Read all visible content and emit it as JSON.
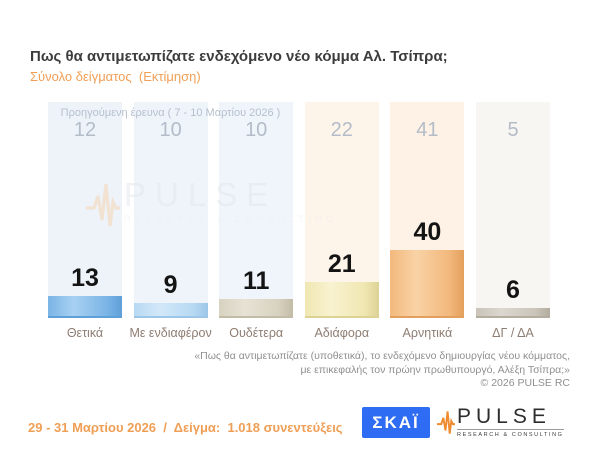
{
  "title": "Πως θα αντιμετωπίζατε ενδεχόμενο νέο κόμμα Αλ. Τσίπρα;",
  "subtitle": "Σύνολο δείγματος  (Εκτίμηση)",
  "previous_survey": {
    "label": "Προηγούμενη έρευνα ( 7 - 10 Μαρτίου 2026 )",
    "values": [
      12,
      10,
      10,
      22,
      41,
      5
    ]
  },
  "chart_data": {
    "type": "bar",
    "title": "Πως θα αντιμετωπίζατε ενδεχόμενο νέο κόμμα Αλ. Τσίπρα;",
    "subtitle": "Σύνολο δείγματος (Εκτίμηση)",
    "categories": [
      "Θετικά",
      "Με ενδιαφέρον",
      "Ουδέτερα",
      "Αδιάφορα",
      "Αρνητικά",
      "ΔΓ / ΔΑ"
    ],
    "series": [
      {
        "name": "Σύνολο δείγματος (Εκτίμηση) 29 - 31 Μαρτίου 2026",
        "values": [
          13,
          9,
          11,
          21,
          40,
          6
        ]
      },
      {
        "name": "Προηγούμενη έρευνα ( 7 - 10 Μαρτίου 2026 )",
        "values": [
          12,
          10,
          10,
          22,
          41,
          5
        ]
      }
    ],
    "ylim": [
      0,
      45
    ],
    "grid": false,
    "legend_position": "none",
    "bar_colors": [
      {
        "main": "#7ab4e6",
        "light": "#a8d1f2",
        "dark": "#5f9fd8"
      },
      {
        "main": "#b7d9f3",
        "light": "#d3e8f9",
        "dark": "#9cc6e8"
      },
      {
        "main": "#d8d2c0",
        "light": "#e7e2d4",
        "dark": "#c2bba6"
      },
      {
        "main": "#f0e7b2",
        "light": "#f8f2d0",
        "dark": "#ddd295"
      },
      {
        "main": "#f2b87c",
        "light": "#f9d3a6",
        "dark": "#e39f5d"
      },
      {
        "main": "#cac4b9",
        "light": "#dcd7cf",
        "dark": "#b3ada0"
      }
    ],
    "column_backgrounds": [
      "#edf3f9",
      "#eef4fa",
      "#eff5fa",
      "#fdf4ea",
      "#fdf2e5",
      "#f8f6f2"
    ]
  },
  "watermark": {
    "text": "PULSE",
    "subtext": "RESEARCH & CONSULTING"
  },
  "footnote": {
    "lines": [
      "«Πως θα αντιμετωπίζατε (υποθετικά), το ενδεχόμενο δημιουργίας νέου κόμματος,",
      "με επικεφαλής τον πρώην πρωθυπουργό, Αλέξη Τσίπρα;»",
      "©  2026  PULSE RC"
    ]
  },
  "footer": {
    "fieldwork": "29 - 31 Μαρτίου 2026  /  Δείγμα:  1.018 συνεντεύξεις",
    "skai_logo_text": "ΣΚΑΪ",
    "pulse_logo_text": "PULSE",
    "pulse_logo_subtext": "RESEARCH & CONSULTING"
  },
  "colors": {
    "accent_orange": "#ef9f55",
    "skai_blue": "#2e6cf3",
    "pulse_orange": "#f08a2e",
    "title_text": "#3c3c3c",
    "prev_text": "#b6bfcd",
    "category_text": "#8e7d72",
    "footnote_text": "#8f8f8f"
  }
}
